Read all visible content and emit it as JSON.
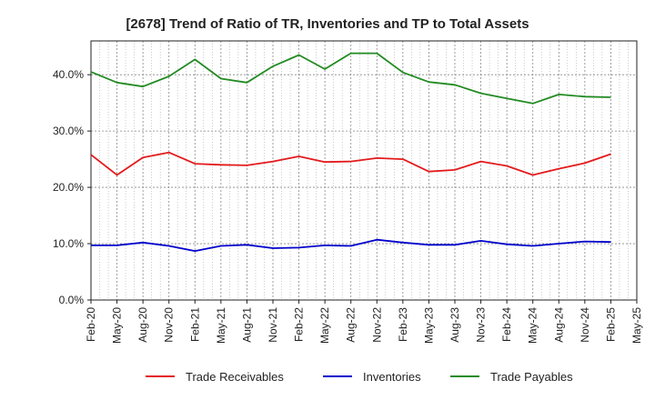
{
  "chart_data": {
    "type": "line",
    "title": "[2678]  Trend of Ratio of TR, Inventories and TP to Total Assets",
    "xlabel": "",
    "ylabel": "",
    "ylim": [
      0,
      46
    ],
    "yticks": [
      0,
      10,
      20,
      30,
      40
    ],
    "ytick_labels": [
      "0.0%",
      "10.0%",
      "20.0%",
      "30.0%",
      "40.0%"
    ],
    "grid": true,
    "legend_position": "bottom",
    "categories": [
      "Feb-20",
      "May-20",
      "Aug-20",
      "Nov-20",
      "Feb-21",
      "May-21",
      "Aug-21",
      "Nov-21",
      "Feb-22",
      "May-22",
      "Aug-22",
      "Nov-22",
      "Feb-23",
      "May-23",
      "Aug-23",
      "Nov-23",
      "Feb-24",
      "May-24",
      "Aug-24",
      "Nov-24",
      "Feb-25",
      "May-25"
    ],
    "series": [
      {
        "name": "Trade Receivables",
        "color": "#e31a1c",
        "values": [
          25.8,
          22.2,
          25.3,
          26.2,
          24.2,
          24.0,
          23.9,
          24.6,
          25.5,
          24.5,
          24.6,
          25.2,
          25.0,
          22.8,
          23.1,
          24.6,
          23.8,
          22.2,
          23.3,
          24.3,
          25.9,
          null
        ]
      },
      {
        "name": "Inventories",
        "color": "#0000cc",
        "values": [
          9.7,
          9.7,
          10.2,
          9.6,
          8.7,
          9.6,
          9.8,
          9.2,
          9.3,
          9.7,
          9.6,
          10.7,
          10.2,
          9.8,
          9.8,
          10.5,
          9.9,
          9.6,
          10.0,
          10.4,
          10.3,
          null
        ]
      },
      {
        "name": "Trade Payables",
        "color": "#228b22",
        "values": [
          40.5,
          38.6,
          37.9,
          39.7,
          42.7,
          39.3,
          38.6,
          41.5,
          43.5,
          41.0,
          43.8,
          43.8,
          40.4,
          38.7,
          38.2,
          36.7,
          35.8,
          34.9,
          36.5,
          36.1,
          36.0,
          null
        ]
      }
    ]
  }
}
